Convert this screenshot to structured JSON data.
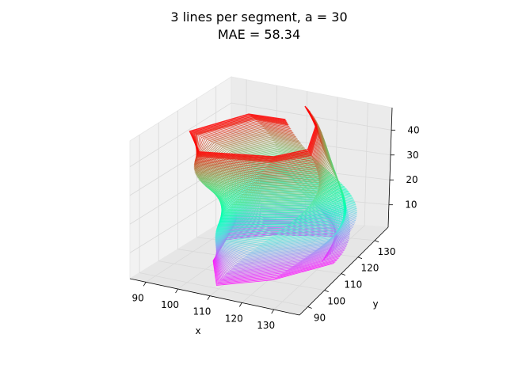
{
  "chart_data": {
    "type": "line",
    "projection": "3d",
    "title": "3 lines per segment, a = 30",
    "subtitle": "MAE = 58.34",
    "xlabel": "x",
    "ylabel": "y",
    "zlabel": "",
    "xticks": [
      "90",
      "100",
      "110",
      "120",
      "130"
    ],
    "yticks": [
      "90",
      "100",
      "110",
      "120",
      "130"
    ],
    "zticks": [
      "10",
      "20",
      "30",
      "40"
    ],
    "xlim": [
      85,
      138
    ],
    "ylim": [
      85,
      138
    ],
    "zlim": [
      1,
      49
    ],
    "colormap": "rainbow",
    "grid": true,
    "legend": "none",
    "pane_color": "#f2f2f2",
    "grid_color": "#d9d9d9"
  }
}
